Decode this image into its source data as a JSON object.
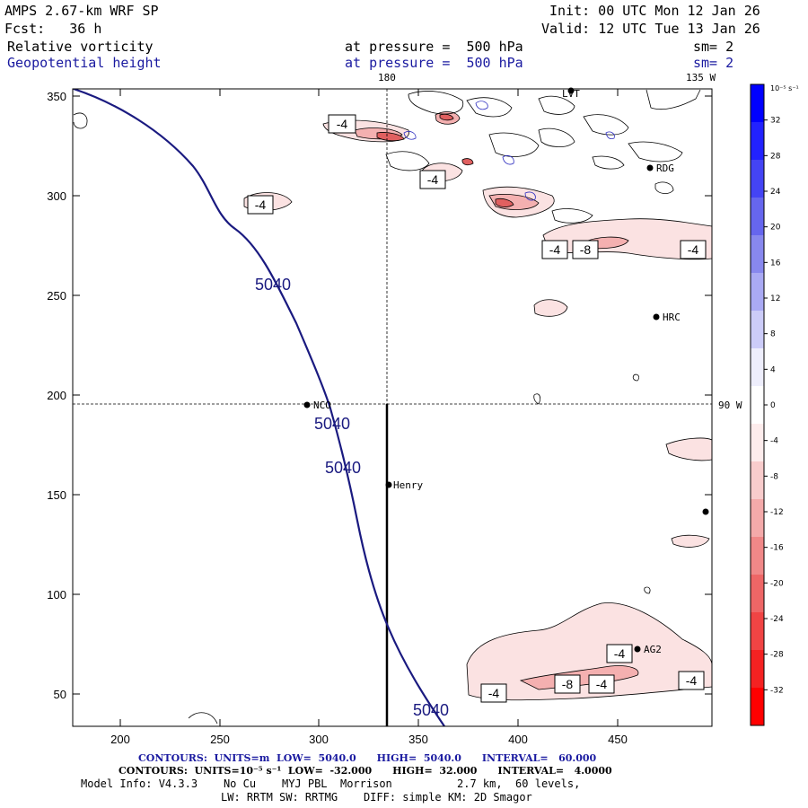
{
  "header": {
    "model": "AMPS 2.67-km WRF SP",
    "init": "Init: 00 UTC Mon 12 Jan 26",
    "forecast": "Fcst:   36 h",
    "valid": "Valid: 12 UTC Tue 13 Jan 26",
    "field1": "Relative vorticity",
    "field1_level": "at pressure =  500 hPa",
    "field1_sm": "sm= 2",
    "field2": "Geopotential height",
    "field2_level": "at pressure =  500 hPa",
    "field2_sm": "sm= 2"
  },
  "map": {
    "meridian_top": "180",
    "meridian_top_right": "135 W",
    "meridian_right": "90 W",
    "xticks": [
      "200",
      "250",
      "300",
      "350",
      "400",
      "450"
    ],
    "yticks": [
      "350",
      "300",
      "250",
      "200",
      "150",
      "100",
      "50"
    ],
    "stations": [
      {
        "name": "LVT"
      },
      {
        "name": "RDG"
      },
      {
        "name": "HRC"
      },
      {
        "name": "NCO"
      },
      {
        "name": "Henry"
      },
      {
        "name": "AG2"
      },
      {
        "name": ""
      }
    ],
    "height_labels": [
      "5040",
      "5040",
      "5040",
      "5040"
    ],
    "vort_labels": [
      "-4",
      "-4",
      "-4",
      "-4",
      "-8",
      "-4",
      "-4",
      "-8",
      "-4",
      "-4",
      "-4"
    ]
  },
  "colorbar": {
    "unit": "10⁻⁵ s⁻¹",
    "labels": [
      "32",
      "28",
      "24",
      "20",
      "16",
      "12",
      "8",
      "4",
      "0",
      "-4",
      "-8",
      "-12",
      "-16",
      "-20",
      "-24",
      "-28",
      "-32"
    ],
    "colors": [
      "#0000ff",
      "#2222ff",
      "#4444f4",
      "#6666ee",
      "#8888ee",
      "#aaaaf4",
      "#ccccf8",
      "#eeeefc",
      "#ffffff",
      "#fdecec",
      "#f8cccc",
      "#f4aaaa",
      "#f08888",
      "#ee6666",
      "#f04444",
      "#f42222",
      "#ff0000"
    ]
  },
  "footer": {
    "line1": "CONTOURS:  UNITS=m  LOW=  5040.0      HIGH=  5040.0      INTERVAL=   60.000",
    "line2": "CONTOURS:  UNITS=10⁻⁵ s⁻¹  LOW=  -32.000      HIGH=  32.000      INTERVAL=   4.0000",
    "line3": "Model Info: V4.3.3    No Cu    MYJ PBL  Morrison          2.7 km,  60 levels,",
    "line4": "LW: RRTM SW: RRTMG    DIFF: simple KM: 2D Smagor"
  }
}
